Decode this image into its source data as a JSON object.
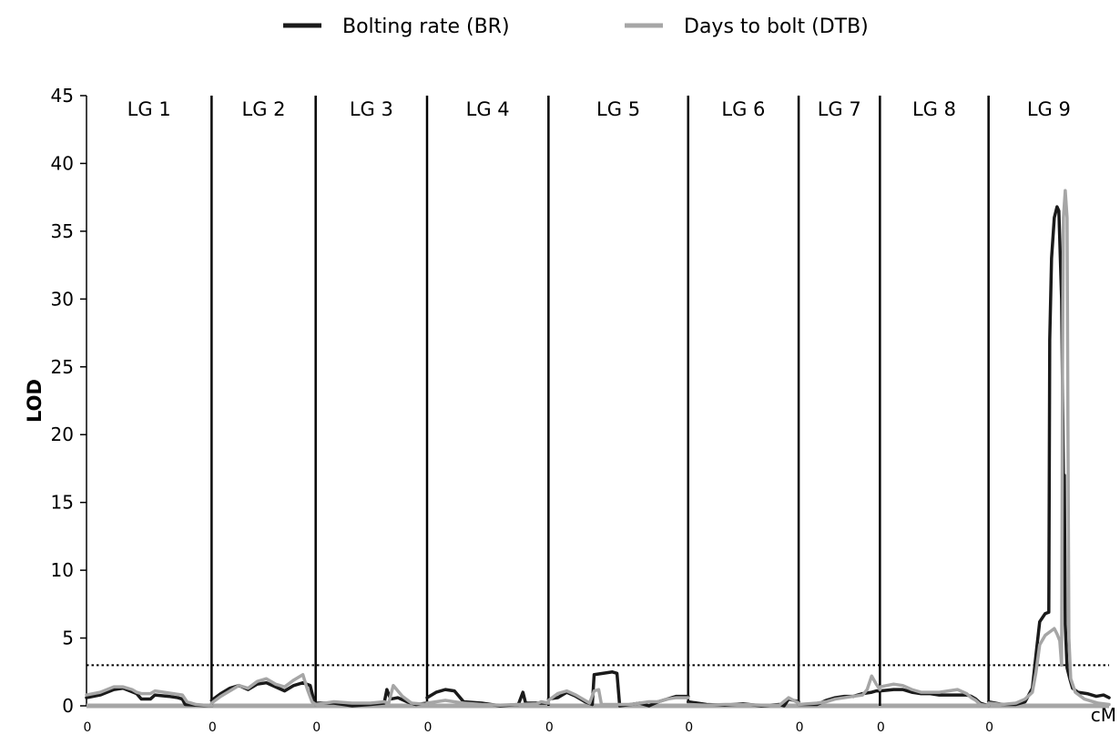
{
  "chart_data": {
    "type": "line",
    "title": "",
    "ylabel": "LOD",
    "xunit": "cM",
    "ylim": [
      0,
      45
    ],
    "yticks": [
      0,
      5,
      10,
      15,
      20,
      25,
      30,
      35,
      40,
      45
    ],
    "threshold": 3,
    "legend_position": "top-center",
    "colors": {
      "BR": "#1a1a1a",
      "DTB": "#a6a6a6",
      "threshold": "#000000"
    },
    "groups": [
      {
        "label": "LG 1",
        "start_label": "0",
        "length": 137
      },
      {
        "label": "LG 2",
        "start_label": "0",
        "length": 114
      },
      {
        "label": "LG 3",
        "start_label": "0",
        "length": 122
      },
      {
        "label": "LG 4",
        "start_label": "0",
        "length": 133
      },
      {
        "label": "LG 5",
        "start_label": "0",
        "length": 153
      },
      {
        "label": "LG 6",
        "start_label": "0",
        "length": 121
      },
      {
        "label": "LG 7",
        "start_label": "0",
        "length": 89
      },
      {
        "label": "LG 8",
        "start_label": "0",
        "length": 119
      },
      {
        "label": "LG 9",
        "start_label": "0",
        "length": 132
      }
    ],
    "series": [
      {
        "name": "Bolting rate (BR)",
        "key": "BR",
        "groups": [
          [
            [
              0,
              0.6
            ],
            [
              15,
              0.8
            ],
            [
              30,
              1.2
            ],
            [
              40,
              1.3
            ],
            [
              55,
              0.9
            ],
            [
              60,
              0.5
            ],
            [
              70,
              0.5
            ],
            [
              75,
              0.8
            ],
            [
              90,
              0.7
            ],
            [
              100,
              0.6
            ],
            [
              105,
              0.5
            ],
            [
              108,
              0.1
            ],
            [
              120,
              0.05
            ],
            [
              137,
              0.0
            ]
          ],
          [
            [
              0,
              0.4
            ],
            [
              10,
              0.9
            ],
            [
              20,
              1.3
            ],
            [
              30,
              1.5
            ],
            [
              40,
              1.2
            ],
            [
              50,
              1.6
            ],
            [
              60,
              1.7
            ],
            [
              70,
              1.4
            ],
            [
              80,
              1.1
            ],
            [
              90,
              1.5
            ],
            [
              100,
              1.7
            ],
            [
              108,
              1.5
            ],
            [
              112,
              0.4
            ],
            [
              114,
              0.1
            ]
          ],
          [
            [
              0,
              0.2
            ],
            [
              20,
              0.2
            ],
            [
              40,
              0.0
            ],
            [
              60,
              0.1
            ],
            [
              75,
              0.2
            ],
            [
              78,
              1.2
            ],
            [
              82,
              0.5
            ],
            [
              90,
              0.6
            ],
            [
              100,
              0.3
            ],
            [
              110,
              0.1
            ],
            [
              122,
              0.2
            ]
          ],
          [
            [
              0,
              0.6
            ],
            [
              10,
              1.0
            ],
            [
              20,
              1.2
            ],
            [
              30,
              1.1
            ],
            [
              40,
              0.3
            ],
            [
              60,
              0.2
            ],
            [
              80,
              0.0
            ],
            [
              100,
              0.1
            ],
            [
              105,
              1.0
            ],
            [
              108,
              0.2
            ],
            [
              120,
              0.2
            ],
            [
              133,
              0.2
            ]
          ],
          [
            [
              0,
              0.5
            ],
            [
              10,
              0.6
            ],
            [
              20,
              1.0
            ],
            [
              30,
              0.7
            ],
            [
              40,
              0.3
            ],
            [
              48,
              0.1
            ],
            [
              50,
              2.3
            ],
            [
              60,
              2.4
            ],
            [
              70,
              2.5
            ],
            [
              75,
              2.4
            ],
            [
              78,
              0.0
            ],
            [
              90,
              0.1
            ],
            [
              100,
              0.2
            ],
            [
              110,
              0.0
            ],
            [
              120,
              0.3
            ],
            [
              130,
              0.5
            ],
            [
              140,
              0.7
            ],
            [
              153,
              0.7
            ]
          ],
          [
            [
              0,
              0.3
            ],
            [
              20,
              0.1
            ],
            [
              40,
              0.05
            ],
            [
              60,
              0.15
            ],
            [
              80,
              0.0
            ],
            [
              100,
              0.1
            ],
            [
              105,
              0.0
            ],
            [
              110,
              0.5
            ],
            [
              121,
              0.3
            ]
          ],
          [
            [
              0,
              0.1
            ],
            [
              20,
              0.1
            ],
            [
              30,
              0.4
            ],
            [
              40,
              0.6
            ],
            [
              50,
              0.7
            ],
            [
              60,
              0.7
            ],
            [
              70,
              0.9
            ],
            [
              80,
              1.0
            ],
            [
              85,
              1.1
            ],
            [
              89,
              1.1
            ]
          ],
          [
            [
              0,
              1.1
            ],
            [
              15,
              1.2
            ],
            [
              25,
              1.2
            ],
            [
              35,
              1.0
            ],
            [
              45,
              0.9
            ],
            [
              55,
              0.9
            ],
            [
              65,
              0.8
            ],
            [
              75,
              0.8
            ],
            [
              85,
              0.8
            ],
            [
              95,
              0.8
            ],
            [
              100,
              0.7
            ],
            [
              105,
              0.5
            ],
            [
              110,
              0.2
            ],
            [
              119,
              0.0
            ]
          ],
          [
            [
              0,
              0.3
            ],
            [
              15,
              0.1
            ],
            [
              30,
              0.1
            ],
            [
              40,
              0.3
            ],
            [
              48,
              1.3
            ],
            [
              52,
              3.8
            ],
            [
              56,
              6.2
            ],
            [
              62,
              6.8
            ],
            [
              66,
              6.9
            ],
            [
              67,
              27
            ],
            [
              69,
              33
            ],
            [
              72,
              36
            ],
            [
              75,
              36.8
            ],
            [
              77,
              36.5
            ],
            [
              80,
              30
            ],
            [
              82,
              17
            ],
            [
              83,
              17
            ],
            [
              84,
              6
            ],
            [
              86,
              2.8
            ],
            [
              89,
              2.0
            ],
            [
              92,
              1.3
            ],
            [
              98,
              1.0
            ],
            [
              108,
              0.9
            ],
            [
              118,
              0.7
            ],
            [
              126,
              0.8
            ],
            [
              132,
              0.6
            ]
          ]
        ]
      },
      {
        "name": "Days to bolt (DTB)",
        "key": "DTB",
        "groups": [
          [
            [
              0,
              0.8
            ],
            [
              15,
              1.0
            ],
            [
              30,
              1.4
            ],
            [
              40,
              1.4
            ],
            [
              50,
              1.2
            ],
            [
              55,
              1.0
            ],
            [
              60,
              0.9
            ],
            [
              70,
              0.9
            ],
            [
              75,
              1.1
            ],
            [
              85,
              1.0
            ],
            [
              95,
              0.9
            ],
            [
              105,
              0.8
            ],
            [
              110,
              0.3
            ],
            [
              120,
              0.1
            ],
            [
              137,
              0.0
            ]
          ],
          [
            [
              0,
              0.2
            ],
            [
              10,
              0.7
            ],
            [
              20,
              1.1
            ],
            [
              30,
              1.5
            ],
            [
              40,
              1.3
            ],
            [
              50,
              1.8
            ],
            [
              60,
              2.0
            ],
            [
              70,
              1.6
            ],
            [
              80,
              1.4
            ],
            [
              90,
              1.9
            ],
            [
              100,
              2.3
            ],
            [
              105,
              1.2
            ],
            [
              110,
              0.3
            ],
            [
              114,
              0.1
            ]
          ],
          [
            [
              0,
              0.1
            ],
            [
              20,
              0.3
            ],
            [
              40,
              0.2
            ],
            [
              60,
              0.2
            ],
            [
              75,
              0.3
            ],
            [
              80,
              0.2
            ],
            [
              85,
              1.5
            ],
            [
              95,
              0.7
            ],
            [
              105,
              0.2
            ],
            [
              122,
              0.1
            ]
          ],
          [
            [
              0,
              0.2
            ],
            [
              20,
              0.4
            ],
            [
              40,
              0.2
            ],
            [
              60,
              0.1
            ],
            [
              80,
              0.05
            ],
            [
              100,
              0.1
            ],
            [
              120,
              0.15
            ],
            [
              125,
              0.3
            ],
            [
              133,
              0.2
            ]
          ],
          [
            [
              0,
              0.4
            ],
            [
              10,
              0.9
            ],
            [
              20,
              1.1
            ],
            [
              30,
              0.8
            ],
            [
              40,
              0.4
            ],
            [
              45,
              0.2
            ],
            [
              50,
              1.1
            ],
            [
              55,
              1.2
            ],
            [
              58,
              0.1
            ],
            [
              70,
              0.1
            ],
            [
              80,
              0.1
            ],
            [
              90,
              0.1
            ],
            [
              100,
              0.2
            ],
            [
              110,
              0.3
            ],
            [
              120,
              0.3
            ],
            [
              130,
              0.5
            ],
            [
              140,
              0.6
            ],
            [
              153,
              0.6
            ]
          ],
          [
            [
              0,
              0.1
            ],
            [
              20,
              0.05
            ],
            [
              40,
              0.1
            ],
            [
              60,
              0.1
            ],
            [
              80,
              0.05
            ],
            [
              100,
              0.05
            ],
            [
              110,
              0.6
            ],
            [
              121,
              0.2
            ]
          ],
          [
            [
              0,
              0.1
            ],
            [
              20,
              0.2
            ],
            [
              30,
              0.3
            ],
            [
              40,
              0.5
            ],
            [
              50,
              0.6
            ],
            [
              60,
              0.7
            ],
            [
              70,
              0.8
            ],
            [
              75,
              1.2
            ],
            [
              80,
              2.2
            ],
            [
              85,
              1.6
            ],
            [
              89,
              1.2
            ]
          ],
          [
            [
              0,
              1.4
            ],
            [
              15,
              1.6
            ],
            [
              25,
              1.5
            ],
            [
              35,
              1.2
            ],
            [
              45,
              1.0
            ],
            [
              55,
              1.0
            ],
            [
              65,
              1.0
            ],
            [
              75,
              1.1
            ],
            [
              85,
              1.2
            ],
            [
              95,
              0.9
            ],
            [
              100,
              0.6
            ],
            [
              105,
              0.4
            ],
            [
              110,
              0.1
            ],
            [
              119,
              0.0
            ]
          ],
          [
            [
              0,
              0.2
            ],
            [
              15,
              0.1
            ],
            [
              30,
              0.2
            ],
            [
              40,
              0.5
            ],
            [
              48,
              1.0
            ],
            [
              52,
              2.5
            ],
            [
              56,
              4.5
            ],
            [
              62,
              5.2
            ],
            [
              68,
              5.5
            ],
            [
              72,
              5.7
            ],
            [
              75,
              5.3
            ],
            [
              78,
              4.8
            ],
            [
              80,
              3.0
            ],
            [
              81,
              25
            ],
            [
              82,
              36
            ],
            [
              84,
              38
            ],
            [
              86,
              36
            ],
            [
              87,
              20
            ],
            [
              88,
              5
            ],
            [
              90,
              2.0
            ],
            [
              95,
              1.0
            ],
            [
              105,
              0.5
            ],
            [
              120,
              0.2
            ],
            [
              132,
              0.1
            ]
          ]
        ]
      }
    ]
  }
}
